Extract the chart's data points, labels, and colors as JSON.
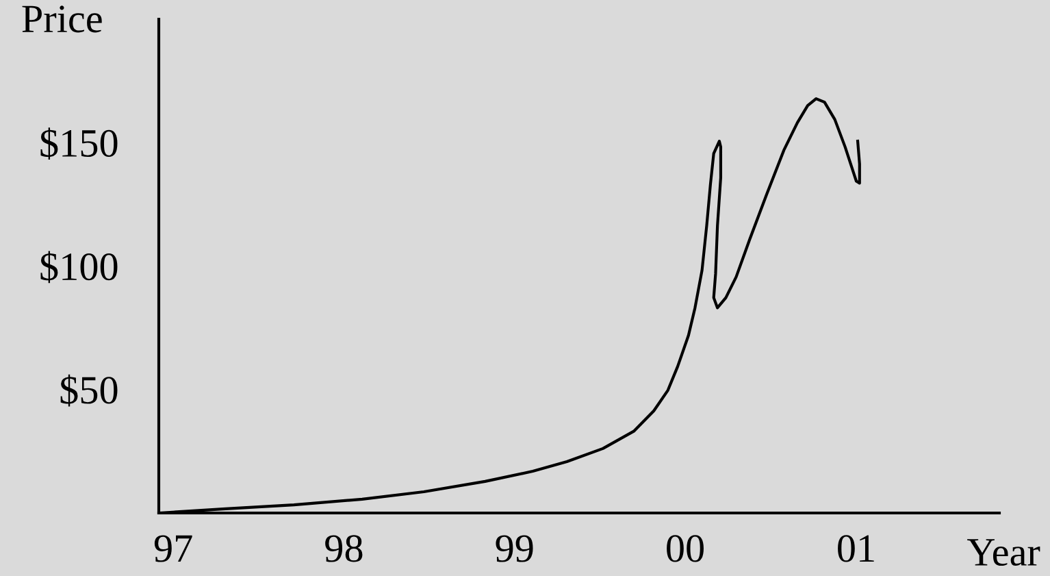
{
  "chart_data": {
    "type": "line",
    "xlabel": "Year",
    "ylabel": "Price",
    "series": [
      {
        "color": "#000000",
        "x": [
          "1996-12-01",
          "1997-04-23",
          "1997-09-16",
          "1998-02-09",
          "1998-06-21",
          "1998-10-30",
          "1999-02-09",
          "1999-04-23",
          "1999-07-09",
          "1999-09-13",
          "1999-10-26",
          "1999-11-25",
          "1999-12-16",
          "2000-01-08",
          "2000-01-22",
          "2000-02-06",
          "2000-02-16",
          "2000-02-24",
          "2000-03-02",
          "2000-03-14",
          "2000-03-17",
          "2000-03-17",
          "2000-03-10",
          "2000-03-06",
          "2000-03-02",
          "2000-03-10",
          "2000-03-28",
          "2000-04-19",
          "2000-05-18",
          "2000-06-23",
          "2000-07-30",
          "2000-08-28",
          "2000-09-19",
          "2000-10-07",
          "2000-10-25",
          "2000-11-16",
          "2000-12-08",
          "2001-01-01",
          "2001-01-08",
          "2001-01-08",
          "2001-01-04"
        ],
        "values": [
          0,
          1.7,
          3.3,
          5.6,
          8.6,
          12.8,
          16.9,
          20.8,
          26.1,
          33.1,
          41.4,
          49.7,
          59.4,
          71.9,
          83.1,
          98.3,
          116.4,
          133.1,
          145.6,
          150.6,
          148.3,
          135.8,
          116.4,
          96.9,
          87.2,
          83.1,
          87.2,
          95.6,
          110.8,
          128.9,
          146.9,
          158.1,
          165.0,
          167.8,
          166.4,
          159.4,
          148.3,
          134.4,
          133.6,
          141.4,
          150.6
        ]
      }
    ],
    "xlim": [
      "1996-12-01",
      "2001-11-03"
    ],
    "ylim": [
      0,
      200
    ],
    "xticks": [
      {
        "value": "1997",
        "label": "97"
      },
      {
        "value": "1998",
        "label": "98"
      },
      {
        "value": "1999",
        "label": "99"
      },
      {
        "value": "2000",
        "label": "00"
      },
      {
        "value": "2001",
        "label": "01"
      }
    ],
    "yticks": [
      {
        "value": 50,
        "label": "$50"
      },
      {
        "value": 100,
        "label": "$100"
      },
      {
        "value": 150,
        "label": "$150"
      }
    ],
    "grid": false,
    "legend": false,
    "marker": "none",
    "line_style": "solid"
  }
}
